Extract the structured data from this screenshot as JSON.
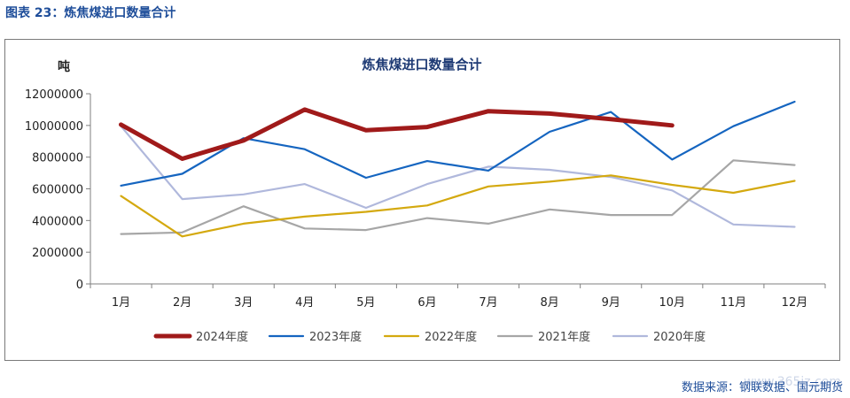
{
  "caption": "图表 23：炼焦煤进口数量合计",
  "source": "数据来源：钢联数据、国元期货",
  "watermark": "www.365jz.com",
  "chart_data": {
    "type": "line",
    "title": "炼焦煤进口数量合计",
    "ylabel": "吨",
    "xlabel": "",
    "categories": [
      "1月",
      "2月",
      "3月",
      "4月",
      "5月",
      "6月",
      "7月",
      "8月",
      "9月",
      "10月",
      "11月",
      "12月"
    ],
    "ylim": [
      0,
      12000000
    ],
    "yticks": [
      0,
      2000000,
      4000000,
      6000000,
      8000000,
      10000000,
      12000000
    ],
    "ytick_labels": [
      "0",
      "2000000",
      "4000000",
      "6000000",
      "8000000",
      "10000000",
      "12000000"
    ],
    "grid": false,
    "legend_position": "bottom",
    "series": [
      {
        "name": "2024年度",
        "color": "#a01a1a",
        "width": 5,
        "values": [
          10050000,
          7900000,
          9050000,
          11000000,
          9700000,
          9900000,
          10900000,
          10750000,
          10400000,
          10000000,
          null,
          null
        ]
      },
      {
        "name": "2023年度",
        "color": "#1565c0",
        "width": 2.2,
        "values": [
          6200000,
          6950000,
          9200000,
          8500000,
          6700000,
          7750000,
          7150000,
          9600000,
          10850000,
          7850000,
          9950000,
          11500000
        ]
      },
      {
        "name": "2022年度",
        "color": "#d4a90f",
        "width": 2.2,
        "values": [
          5550000,
          3000000,
          3800000,
          4250000,
          4550000,
          4950000,
          6150000,
          6450000,
          6850000,
          6250000,
          5750000,
          6500000
        ]
      },
      {
        "name": "2021年度",
        "color": "#a6a6a6",
        "width": 2.2,
        "values": [
          3150000,
          3250000,
          4900000,
          3500000,
          3400000,
          4150000,
          3800000,
          4700000,
          4350000,
          4350000,
          7800000,
          7500000
        ]
      },
      {
        "name": "2020年度",
        "color": "#b0b8dc",
        "width": 2.2,
        "values": [
          9950000,
          5350000,
          5650000,
          6300000,
          4800000,
          6300000,
          7400000,
          7200000,
          6750000,
          5900000,
          3750000,
          3600000
        ]
      }
    ]
  }
}
